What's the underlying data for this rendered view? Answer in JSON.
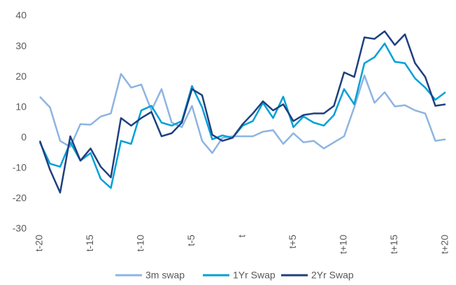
{
  "chart_data": {
    "type": "line",
    "categories": [
      "t-20",
      null,
      null,
      null,
      null,
      "t-15",
      null,
      null,
      null,
      null,
      "t-10",
      null,
      null,
      null,
      null,
      "t-5",
      null,
      null,
      null,
      null,
      "t",
      null,
      null,
      null,
      null,
      "t+5",
      null,
      null,
      null,
      null,
      "t+10",
      null,
      null,
      null,
      null,
      "t+15",
      null,
      null,
      null,
      null,
      "t+20"
    ],
    "series": [
      {
        "name": "3m swap",
        "color": "#8db4e2",
        "values": [
          13.5,
          10,
          -1,
          -3,
          4.5,
          4.3,
          7,
          8,
          21,
          16.5,
          17.5,
          9,
          16,
          5,
          3.5,
          10.5,
          -1,
          -5,
          0,
          0.5,
          0.5,
          0.5,
          2,
          2.5,
          -2,
          1.5,
          -1.5,
          -1,
          -3.5,
          -1.5,
          0.5,
          10,
          20.5,
          11.5,
          15,
          10.3,
          10.7,
          9,
          8,
          -1,
          -0.5
        ]
      },
      {
        "name": "1Yr Swap",
        "color": "#00a0d6",
        "values": [
          -1.5,
          -8.5,
          -9.5,
          -1.5,
          -7.5,
          -5,
          -13.5,
          -16.5,
          -1,
          -2,
          9,
          10.5,
          5,
          4,
          5.5,
          17,
          10,
          -0.5,
          0.8,
          0,
          4,
          5.5,
          11.5,
          6.5,
          13.5,
          3.5,
          7,
          5,
          4,
          7.5,
          16,
          11,
          24.5,
          26.5,
          31,
          25,
          24.5,
          19.5,
          16.5,
          12.5,
          15
        ]
      },
      {
        "name": "2Yr Swap",
        "color": "#1f3f7f",
        "values": [
          -1,
          -10.5,
          -18,
          0.5,
          -7.5,
          -3.5,
          -9.5,
          -13,
          6.5,
          4,
          6.5,
          8.5,
          0.5,
          1.5,
          5,
          16,
          14,
          1,
          -1,
          0,
          4.5,
          8,
          12,
          9,
          11,
          5.5,
          7.5,
          8,
          8,
          10.5,
          21.5,
          20,
          33,
          32.5,
          35,
          30.5,
          34,
          24.5,
          20,
          10.5,
          11
        ]
      }
    ],
    "ylim": [
      -30,
      40
    ],
    "yticks": [
      -30,
      -20,
      -10,
      0,
      10,
      20,
      30,
      40
    ],
    "legend": "bottom"
  }
}
